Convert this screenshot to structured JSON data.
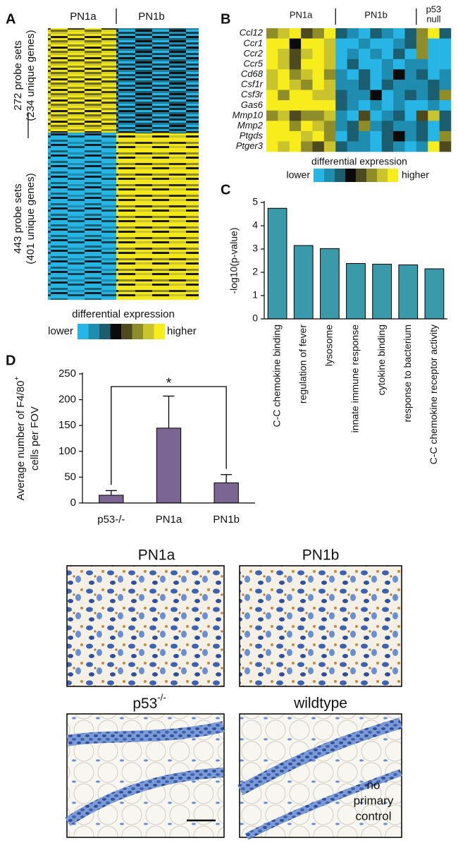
{
  "panel_a": {
    "letter": "A",
    "groups": [
      "PN1a",
      "PN1b"
    ],
    "row_groups": [
      [
        "272 probe sets",
        "(234 unique genes)"
      ],
      [
        "443 probe sets",
        "(401 unique genes)"
      ]
    ],
    "scale_title": "differential expression",
    "scale_low": "lower",
    "scale_high": "higher"
  },
  "chart_data": [
    {
      "type": "heatmap",
      "letter": "B",
      "rows": [
        "Ccl12",
        "Ccr1",
        "Ccr2",
        "Ccr5",
        "Cd68",
        "Csf1r",
        "Csf3r",
        "Gas6",
        "Mmp10",
        "Mmp2",
        "Ptgds",
        "Ptger3"
      ],
      "groups": [
        {
          "name": "PN1a",
          "columns": 6
        },
        {
          "name": "PN1b",
          "columns": 7
        },
        {
          "name": [
            "p53",
            "null"
          ],
          "columns": 3
        }
      ],
      "values": [
        [
          1.5,
          2.5,
          3.5,
          0.5,
          1.5,
          3.5,
          -1.5,
          -2.5,
          -3.5,
          -1.5,
          -2.5,
          -3.5,
          -1.5,
          1.5,
          3.5,
          -1.5
        ],
        [
          3.5,
          3.5,
          -0.5,
          3.5,
          3.5,
          2.5,
          -3.5,
          -3.5,
          -2.5,
          -3.5,
          -3.5,
          -2.5,
          -1.5,
          1.5,
          -3.5,
          -3.5
        ],
        [
          3.5,
          2.5,
          0.5,
          2.5,
          3.5,
          2.5,
          -3.5,
          -2.5,
          -3.5,
          -2.5,
          -3.5,
          -1.5,
          -3.5,
          1.5,
          -3.5,
          -3.5
        ],
        [
          3.5,
          2.5,
          0.5,
          3.5,
          3.5,
          2.5,
          -3.5,
          -1.5,
          -3.5,
          -3.5,
          -2.5,
          -3.5,
          -2.5,
          -2.5,
          -3.5,
          -3.5
        ],
        [
          2.5,
          3.5,
          1.5,
          2.5,
          3.5,
          1.5,
          -2.5,
          -3.5,
          -1.5,
          -3.5,
          -2.5,
          -0.5,
          -2.5,
          -1.5,
          -3.5,
          -2.5
        ],
        [
          2.5,
          3.5,
          2.5,
          1.5,
          3.5,
          2.5,
          -2.5,
          -2.5,
          -1.5,
          -3.5,
          -1.5,
          -2.5,
          -2.5,
          -2.5,
          -1.5,
          -2.5
        ],
        [
          3.5,
          1.5,
          3.5,
          3.5,
          2.5,
          2.5,
          -1.5,
          -2.5,
          -2.5,
          -0.5,
          -3.5,
          -2.5,
          -1.5,
          -2.5,
          -1.5,
          1.5
        ],
        [
          3.5,
          3.5,
          3.5,
          3.5,
          3.5,
          3.5,
          -1.5,
          -2.5,
          -3.5,
          -2.5,
          -3.5,
          -2.5,
          -3.5,
          -3.5,
          -2.5,
          -3.5
        ],
        [
          1.5,
          2.5,
          0.5,
          1.5,
          1.5,
          2.5,
          -2.5,
          -3.5,
          0.5,
          -3.5,
          -2.5,
          -1.5,
          -3.5,
          0.5,
          2.5,
          -1.5
        ],
        [
          3.5,
          3.5,
          1.5,
          3.5,
          2.5,
          1.5,
          -2.5,
          -1.5,
          1.5,
          -2.5,
          -1.5,
          -2.5,
          -2.5,
          -1.5,
          -3.5,
          -1.5
        ],
        [
          3.5,
          3.5,
          3.5,
          2.5,
          3.5,
          1.5,
          -3.5,
          -1.5,
          -2.5,
          -3.5,
          -1.5,
          -0.5,
          -2.5,
          -1.5,
          -3.5,
          1.5
        ],
        [
          3.5,
          2.5,
          3.5,
          1.5,
          0.5,
          2.5,
          -1.5,
          -2.5,
          -2.5,
          -3.5,
          -1.5,
          -2.5,
          -3.5,
          -2.5,
          3.5,
          0.5
        ]
      ],
      "zlim": [
        -4,
        4
      ],
      "colors": [
        "#27b5e6",
        "#1f8db0",
        "#1b5e70",
        "#0b0b0b",
        "#4c4a1e",
        "#8f8c2a",
        "#c9c42d",
        "#f7ec1c"
      ],
      "scale_title": "differential expression",
      "scale_low": "lower",
      "scale_high": "higher"
    },
    {
      "type": "bar",
      "letter": "C",
      "y_label": "-log10(p-value)",
      "categories": [
        "C-C chemokine binding",
        "regulation of fever",
        "lysosome",
        "innate immune response",
        "cytokine binding",
        "response to bacterium",
        "C-C chemokine receptor activity"
      ],
      "values": [
        4.75,
        3.15,
        3.02,
        2.38,
        2.35,
        2.32,
        2.15
      ],
      "color": "#3a9aa9",
      "ylim": [
        0,
        5
      ],
      "yticks": [
        0,
        1,
        2,
        3,
        4,
        5
      ]
    },
    {
      "type": "bar",
      "letter": "D",
      "y_label": [
        "Average number of F4/80",
        "cells per FOV"
      ],
      "y_label_superscript": "+",
      "categories": [
        "p53-/-",
        "PN1a",
        "PN1b"
      ],
      "values": [
        15,
        145,
        39
      ],
      "errors": [
        9,
        62,
        16
      ],
      "color": "#7b6693",
      "ylim": [
        0,
        250
      ],
      "yticks": [
        0,
        50,
        100,
        150,
        200,
        250
      ],
      "annotation": "*"
    }
  ],
  "micrographs": [
    {
      "label": "PN1a"
    },
    {
      "label": "PN1b"
    },
    {
      "label": "p53",
      "label_superscript": "-/-"
    },
    {
      "label": "wildtype",
      "note": [
        "no",
        "primary",
        "control"
      ]
    }
  ]
}
